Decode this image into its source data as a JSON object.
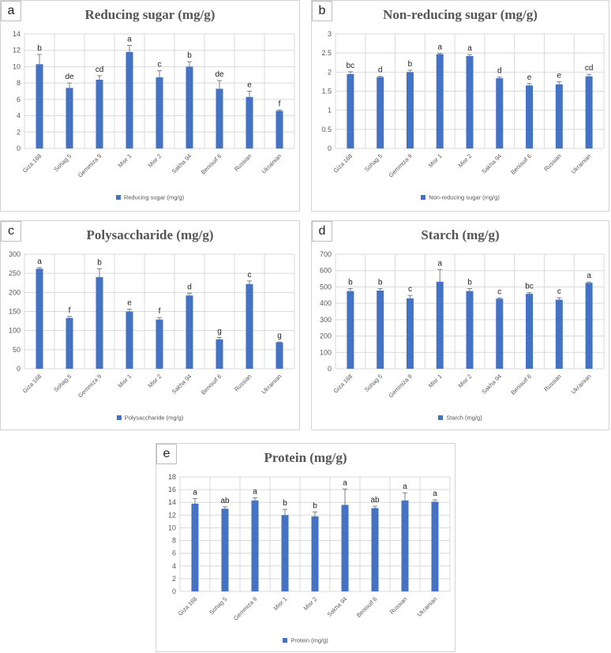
{
  "chart_data": [
    {
      "panel": "a",
      "type": "bar",
      "title": "Reducing sugar (mg/g)",
      "categories": [
        "Giza 168",
        "Sohag 5",
        "Gemmiza 9",
        "Misr 1",
        "Misr 2",
        "Sakha 94",
        "Benisuif 6",
        "Russian",
        "Ukrainian"
      ],
      "series": [
        {
          "name": "Reducing sugar (mg/g)",
          "values": [
            10.3,
            7.4,
            8.4,
            11.8,
            8.7,
            10.0,
            7.3,
            6.3,
            4.6
          ],
          "errors": [
            1.2,
            0.6,
            0.5,
            0.8,
            0.8,
            0.6,
            1.0,
            0.7,
            0.1
          ]
        }
      ],
      "letters": [
        "b",
        "de",
        "cd",
        "a",
        "c",
        "b",
        "de",
        "e",
        "f"
      ],
      "ylim": [
        0,
        14
      ],
      "yticks": [
        "0",
        "2",
        "4",
        "6",
        "8",
        "10",
        "12",
        "14"
      ],
      "grid": true,
      "legend": "bottom",
      "color": "#4472C4"
    },
    {
      "panel": "b",
      "type": "bar",
      "title": "Non-reducing sugar (mg/g)",
      "categories": [
        "Giza 168",
        "Sohag 5",
        "Gemmiza 9",
        "Misr 1",
        "Misr 2",
        "Sakha 94",
        "Benisuif 6",
        "Russian",
        "Ukrainian"
      ],
      "series": [
        {
          "name": "Non-reducing sugar (mg/g)",
          "values": [
            1.95,
            1.87,
            2.0,
            2.47,
            2.42,
            1.84,
            1.65,
            1.68,
            1.89
          ],
          "errors": [
            0.06,
            0.02,
            0.05,
            0.02,
            0.04,
            0.03,
            0.05,
            0.07,
            0.05
          ]
        }
      ],
      "letters": [
        "bc",
        "d",
        "b",
        "a",
        "a",
        "d",
        "e",
        "e",
        "cd"
      ],
      "ylim": [
        0,
        3
      ],
      "yticks": [
        "0",
        "0.5",
        "1",
        "1.5",
        "2",
        "2.5",
        "3"
      ],
      "grid": true,
      "legend": "bottom",
      "color": "#4472C4"
    },
    {
      "panel": "c",
      "type": "bar",
      "title": "Polysaccharide (mg/g)",
      "categories": [
        "Giza 168",
        "Sohag 5",
        "Gemmiza 9",
        "Misr 1",
        "Misr 2",
        "Sakha 94",
        "Benisuif 6",
        "Russian",
        "Ukrainian"
      ],
      "series": [
        {
          "name": "Polysaccharide (mg/g)",
          "values": [
            262,
            133,
            240,
            150,
            129,
            192,
            77,
            222,
            69
          ],
          "errors": [
            3,
            4,
            22,
            6,
            5,
            6,
            5,
            8,
            1
          ]
        }
      ],
      "letters": [
        "a",
        "f",
        "b",
        "e",
        "f",
        "d",
        "g",
        "c",
        "g"
      ],
      "ylim": [
        0,
        300
      ],
      "yticks": [
        "0",
        "50",
        "100",
        "150",
        "200",
        "250",
        "300"
      ],
      "grid": true,
      "legend": "bottom",
      "color": "#4472C4"
    },
    {
      "panel": "d",
      "type": "bar",
      "title": "Starch (mg/g)",
      "categories": [
        "Giza 168",
        "Sohag 5",
        "Gemmiza 9",
        "Misr 1",
        "Misr 2",
        "Sakha 94",
        "Benisuif 6",
        "Russian",
        "Ukrainian"
      ],
      "series": [
        {
          "name": "Starch (mg/g)",
          "values": [
            475,
            478,
            430,
            532,
            475,
            428,
            458,
            422,
            525
          ],
          "errors": [
            15,
            12,
            18,
            75,
            15,
            5,
            7,
            12,
            5
          ]
        }
      ],
      "letters": [
        "b",
        "b",
        "c",
        "a",
        "b",
        "c",
        "bc",
        "c",
        "a"
      ],
      "ylim": [
        0,
        700
      ],
      "yticks": [
        "0",
        "100",
        "200",
        "300",
        "400",
        "500",
        "600",
        "700"
      ],
      "grid": true,
      "legend": "bottom",
      "color": "#4472C4"
    },
    {
      "panel": "e",
      "type": "bar",
      "title": "Protein (mg/g)",
      "categories": [
        "Giza 168",
        "Sohag 5",
        "Gemmiza 9",
        "Misr 1",
        "Misr 2",
        "Sakha 94",
        "Benisuif 6",
        "Russian",
        "Ukrainian"
      ],
      "series": [
        {
          "name": "Protein (mg/g)",
          "values": [
            13.8,
            13.0,
            14.3,
            12.0,
            11.8,
            13.6,
            13.1,
            14.3,
            14.1
          ],
          "errors": [
            0.8,
            0.3,
            0.4,
            0.9,
            0.7,
            2.5,
            0.3,
            1.2,
            0.3
          ]
        }
      ],
      "letters": [
        "a",
        "ab",
        "a",
        "b",
        "b",
        "a",
        "ab",
        "a",
        "a"
      ],
      "ylim": [
        0,
        18
      ],
      "yticks": [
        "0",
        "2",
        "4",
        "6",
        "8",
        "10",
        "12",
        "14",
        "16",
        "18"
      ],
      "grid": true,
      "legend": "bottom",
      "color": "#4472C4"
    }
  ]
}
